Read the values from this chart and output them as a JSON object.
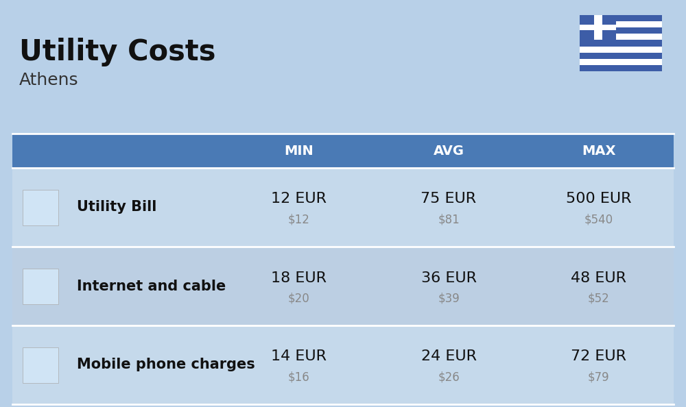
{
  "title": "Utility Costs",
  "subtitle": "Athens",
  "background_color": "#b8d0e8",
  "header_bg_color": "#4a7ab5",
  "header_text_color": "#ffffff",
  "row_bg_color_1": "#c5d9eb",
  "row_bg_color_2": "#bccfe3",
  "col_header_labels": [
    "MIN",
    "AVG",
    "MAX"
  ],
  "rows": [
    {
      "label": "Utility Bill",
      "min_eur": "12 EUR",
      "min_usd": "$12",
      "avg_eur": "75 EUR",
      "avg_usd": "$81",
      "max_eur": "500 EUR",
      "max_usd": "$540"
    },
    {
      "label": "Internet and cable",
      "min_eur": "18 EUR",
      "min_usd": "$20",
      "avg_eur": "36 EUR",
      "avg_usd": "$39",
      "max_eur": "48 EUR",
      "max_usd": "$52"
    },
    {
      "label": "Mobile phone charges",
      "min_eur": "14 EUR",
      "min_usd": "$16",
      "avg_eur": "24 EUR",
      "avg_usd": "$26",
      "max_eur": "72 EUR",
      "max_usd": "$79"
    }
  ],
  "flag_blue": "#3d5da7",
  "flag_white": "#ffffff",
  "title_fontsize": 30,
  "subtitle_fontsize": 18,
  "header_fontsize": 14,
  "label_fontsize": 15,
  "eur_fontsize": 16,
  "usd_fontsize": 12
}
